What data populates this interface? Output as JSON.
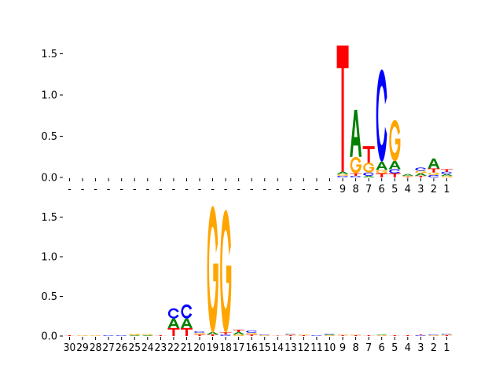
{
  "chart_data": [
    {
      "type": "sequence-logo",
      "panel": "top",
      "ylim": [
        0,
        1.6
      ],
      "yticks": [
        "0.0",
        "0.5",
        "1.0",
        "1.5"
      ],
      "xtick_labels": [
        "-",
        "-",
        "-",
        "-",
        "-",
        "-",
        "-",
        "-",
        "-",
        "-",
        "-",
        "-",
        "-",
        "-",
        "-",
        "-",
        "-",
        "-",
        "-",
        "-",
        "-",
        "9",
        "8",
        "7",
        "6",
        "5",
        "4",
        "3",
        "2",
        "1"
      ],
      "colors": {
        "A": "#008000",
        "C": "#0000ff",
        "G": "#ffa500",
        "T": "#ff0000"
      },
      "stacks": [
        [],
        [],
        [],
        [],
        [],
        [],
        [],
        [],
        [],
        [],
        [],
        [],
        [],
        [],
        [],
        [],
        [],
        [],
        [],
        [],
        [],
        [
          [
            "C",
            0.02
          ],
          [
            "G",
            0.02
          ],
          [
            "A",
            0.03
          ],
          [
            "T",
            1.53
          ]
        ],
        [
          [
            "C",
            0.02
          ],
          [
            "T",
            0.03
          ],
          [
            "G",
            0.2
          ],
          [
            "A",
            0.57
          ]
        ],
        [
          [
            "A",
            0.02
          ],
          [
            "C",
            0.04
          ],
          [
            "G",
            0.12
          ],
          [
            "T",
            0.2
          ]
        ],
        [
          [
            "T",
            0.05
          ],
          [
            "G",
            0.04
          ],
          [
            "A",
            0.1
          ],
          [
            "C",
            1.12
          ]
        ],
        [
          [
            "T",
            0.05
          ],
          [
            "C",
            0.05
          ],
          [
            "A",
            0.1
          ],
          [
            "G",
            0.5
          ]
        ],
        [
          [
            "T",
            0.01
          ],
          [
            "G",
            0.01
          ],
          [
            "A",
            0.02
          ]
        ],
        [
          [
            "T",
            0.02
          ],
          [
            "A",
            0.03
          ],
          [
            "G",
            0.03
          ],
          [
            "C",
            0.04
          ]
        ],
        [
          [
            "C",
            0.03
          ],
          [
            "G",
            0.03
          ],
          [
            "T",
            0.05
          ],
          [
            "A",
            0.12
          ]
        ],
        [
          [
            "G",
            0.02
          ],
          [
            "A",
            0.02
          ],
          [
            "C",
            0.03
          ],
          [
            "T",
            0.03
          ]
        ]
      ]
    },
    {
      "type": "sequence-logo",
      "panel": "bottom",
      "ylim": [
        0,
        1.65
      ],
      "yticks": [
        "0.0",
        "0.5",
        "1.0",
        "1.5"
      ],
      "xtick_labels": [
        "30",
        "29",
        "28",
        "27",
        "26",
        "25",
        "24",
        "23",
        "22",
        "21",
        "20",
        "19",
        "18",
        "17",
        "16",
        "15",
        "14",
        "13",
        "12",
        "11",
        "10",
        "9",
        "8",
        "7",
        "6",
        "5",
        "4",
        "3",
        "2",
        "1"
      ],
      "colors": {
        "A": "#008000",
        "C": "#0000ff",
        "G": "#ffa500",
        "T": "#ff0000"
      },
      "stacks": [
        [
          [
            "T",
            0.01
          ]
        ],
        [
          [
            "G",
            0.01
          ]
        ],
        [
          [
            "G",
            0.01
          ]
        ],
        [
          [
            "C",
            0.01
          ]
        ],
        [
          [
            "C",
            0.01
          ]
        ],
        [
          [
            "A",
            0.01
          ],
          [
            "G",
            0.02
          ]
        ],
        [
          [
            "A",
            0.01
          ],
          [
            "G",
            0.015
          ]
        ],
        [
          [
            "T",
            0.01
          ]
        ],
        [
          [
            "T",
            0.1
          ],
          [
            "A",
            0.12
          ],
          [
            "C",
            0.13
          ]
        ],
        [
          [
            "T",
            0.1
          ],
          [
            "A",
            0.12
          ],
          [
            "C",
            0.18
          ]
        ],
        [
          [
            "T",
            0.02
          ],
          [
            "G",
            0.02
          ],
          [
            "C",
            0.02
          ]
        ],
        [
          [
            "T",
            0.02
          ],
          [
            "A",
            0.03
          ],
          [
            "G",
            1.6
          ]
        ],
        [
          [
            "C",
            0.02
          ],
          [
            "T",
            0.03
          ],
          [
            "G",
            1.55
          ]
        ],
        [
          [
            "G",
            0.02
          ],
          [
            "A",
            0.03
          ],
          [
            "T",
            0.03
          ]
        ],
        [
          [
            "T",
            0.02
          ],
          [
            "G",
            0.02
          ],
          [
            "C",
            0.03
          ]
        ],
        [
          [
            "G",
            0.01
          ],
          [
            "C",
            0.01
          ]
        ],
        [
          [
            "T",
            0.005
          ]
        ],
        [
          [
            "T",
            0.01
          ],
          [
            "G",
            0.01
          ],
          [
            "C",
            0.01
          ]
        ],
        [
          [
            "T",
            0.01
          ],
          [
            "G",
            0.01
          ]
        ],
        [
          [
            "C",
            0.01
          ]
        ],
        [
          [
            "G",
            0.01
          ],
          [
            "A",
            0.01
          ],
          [
            "C",
            0.01
          ]
        ],
        [
          [
            "T",
            0.01
          ],
          [
            "G",
            0.01
          ]
        ],
        [
          [
            "T",
            0.01
          ],
          [
            "G",
            0.01
          ]
        ],
        [
          [
            "T",
            0.01
          ]
        ],
        [
          [
            "G",
            0.01
          ],
          [
            "A",
            0.01
          ]
        ],
        [
          [
            "T",
            0.01
          ]
        ],
        [
          [
            "T",
            0.01
          ]
        ],
        [
          [
            "C",
            0.01
          ],
          [
            "T",
            0.01
          ]
        ],
        [
          [
            "G",
            0.01
          ],
          [
            "C",
            0.01
          ]
        ],
        [
          [
            "T",
            0.01
          ],
          [
            "G",
            0.01
          ],
          [
            "C",
            0.01
          ]
        ]
      ]
    }
  ]
}
